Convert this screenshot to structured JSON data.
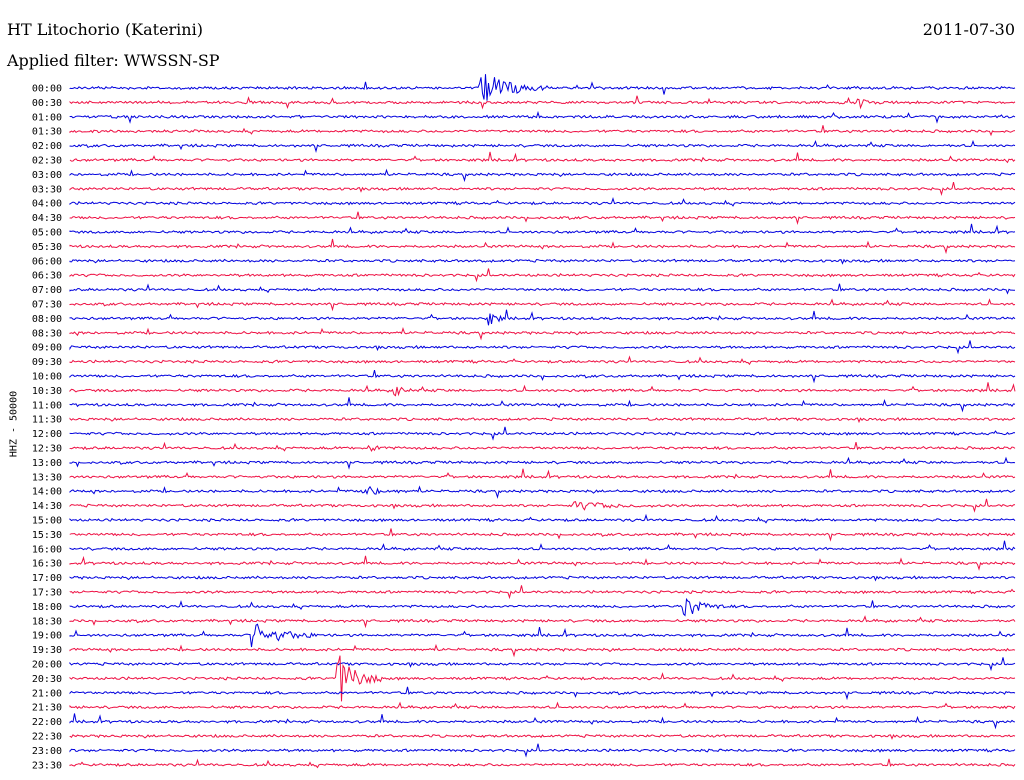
{
  "header": {
    "station": "HT Litochorio (Katerini)",
    "date": "2011-07-30",
    "filter": "Applied filter: WWSSN-SP"
  },
  "channel_label": "HHZ - 50000",
  "colors": {
    "even_trace": "#0000dd",
    "odd_trace": "#ee1144"
  },
  "chart_data": {
    "type": "line",
    "title": "HT Litochorio (Katerini)",
    "subtitle": "Applied filter: WWSSN-SP",
    "ylabel": "HHZ - 50000",
    "row_labels": [
      "00:00",
      "00:30",
      "01:00",
      "01:30",
      "02:00",
      "02:30",
      "03:00",
      "03:30",
      "04:00",
      "04:30",
      "05:00",
      "05:30",
      "06:00",
      "06:30",
      "07:00",
      "07:30",
      "08:00",
      "08:30",
      "09:00",
      "09:30",
      "10:00",
      "10:30",
      "11:00",
      "11:30",
      "12:00",
      "12:30",
      "13:00",
      "13:30",
      "14:00",
      "14:30",
      "15:00",
      "15:30",
      "16:00",
      "16:30",
      "17:00",
      "17:30",
      "18:00",
      "18:30",
      "19:00",
      "19:30",
      "20:00",
      "20:30",
      "21:00",
      "21:30",
      "22:00",
      "22:30",
      "23:00",
      "23:30"
    ],
    "row_duration_minutes": 30,
    "events": [
      {
        "row": "00:00",
        "minute": 13.0,
        "amplitude": 18,
        "duration": 2.2
      },
      {
        "row": "00:30",
        "minute": 25.0,
        "amplitude": 5,
        "duration": 0.8
      },
      {
        "row": "08:00",
        "minute": 13.3,
        "amplitude": 7,
        "duration": 0.6
      },
      {
        "row": "10:30",
        "minute": 10.3,
        "amplitude": 6,
        "duration": 0.6
      },
      {
        "row": "12:30",
        "minute": 9.5,
        "amplitude": 3,
        "duration": 0.8
      },
      {
        "row": "14:00",
        "minute": 9.3,
        "amplitude": 5,
        "duration": 1.5
      },
      {
        "row": "14:30",
        "minute": 16.0,
        "amplitude": 4,
        "duration": 2.5
      },
      {
        "row": "18:00",
        "minute": 19.5,
        "amplitude": 12,
        "duration": 1.3
      },
      {
        "row": "19:00",
        "minute": 5.8,
        "amplitude": 12,
        "duration": 2.2
      },
      {
        "row": "20:30",
        "minute": 8.5,
        "amplitude": 28,
        "duration": 1.4
      }
    ]
  }
}
